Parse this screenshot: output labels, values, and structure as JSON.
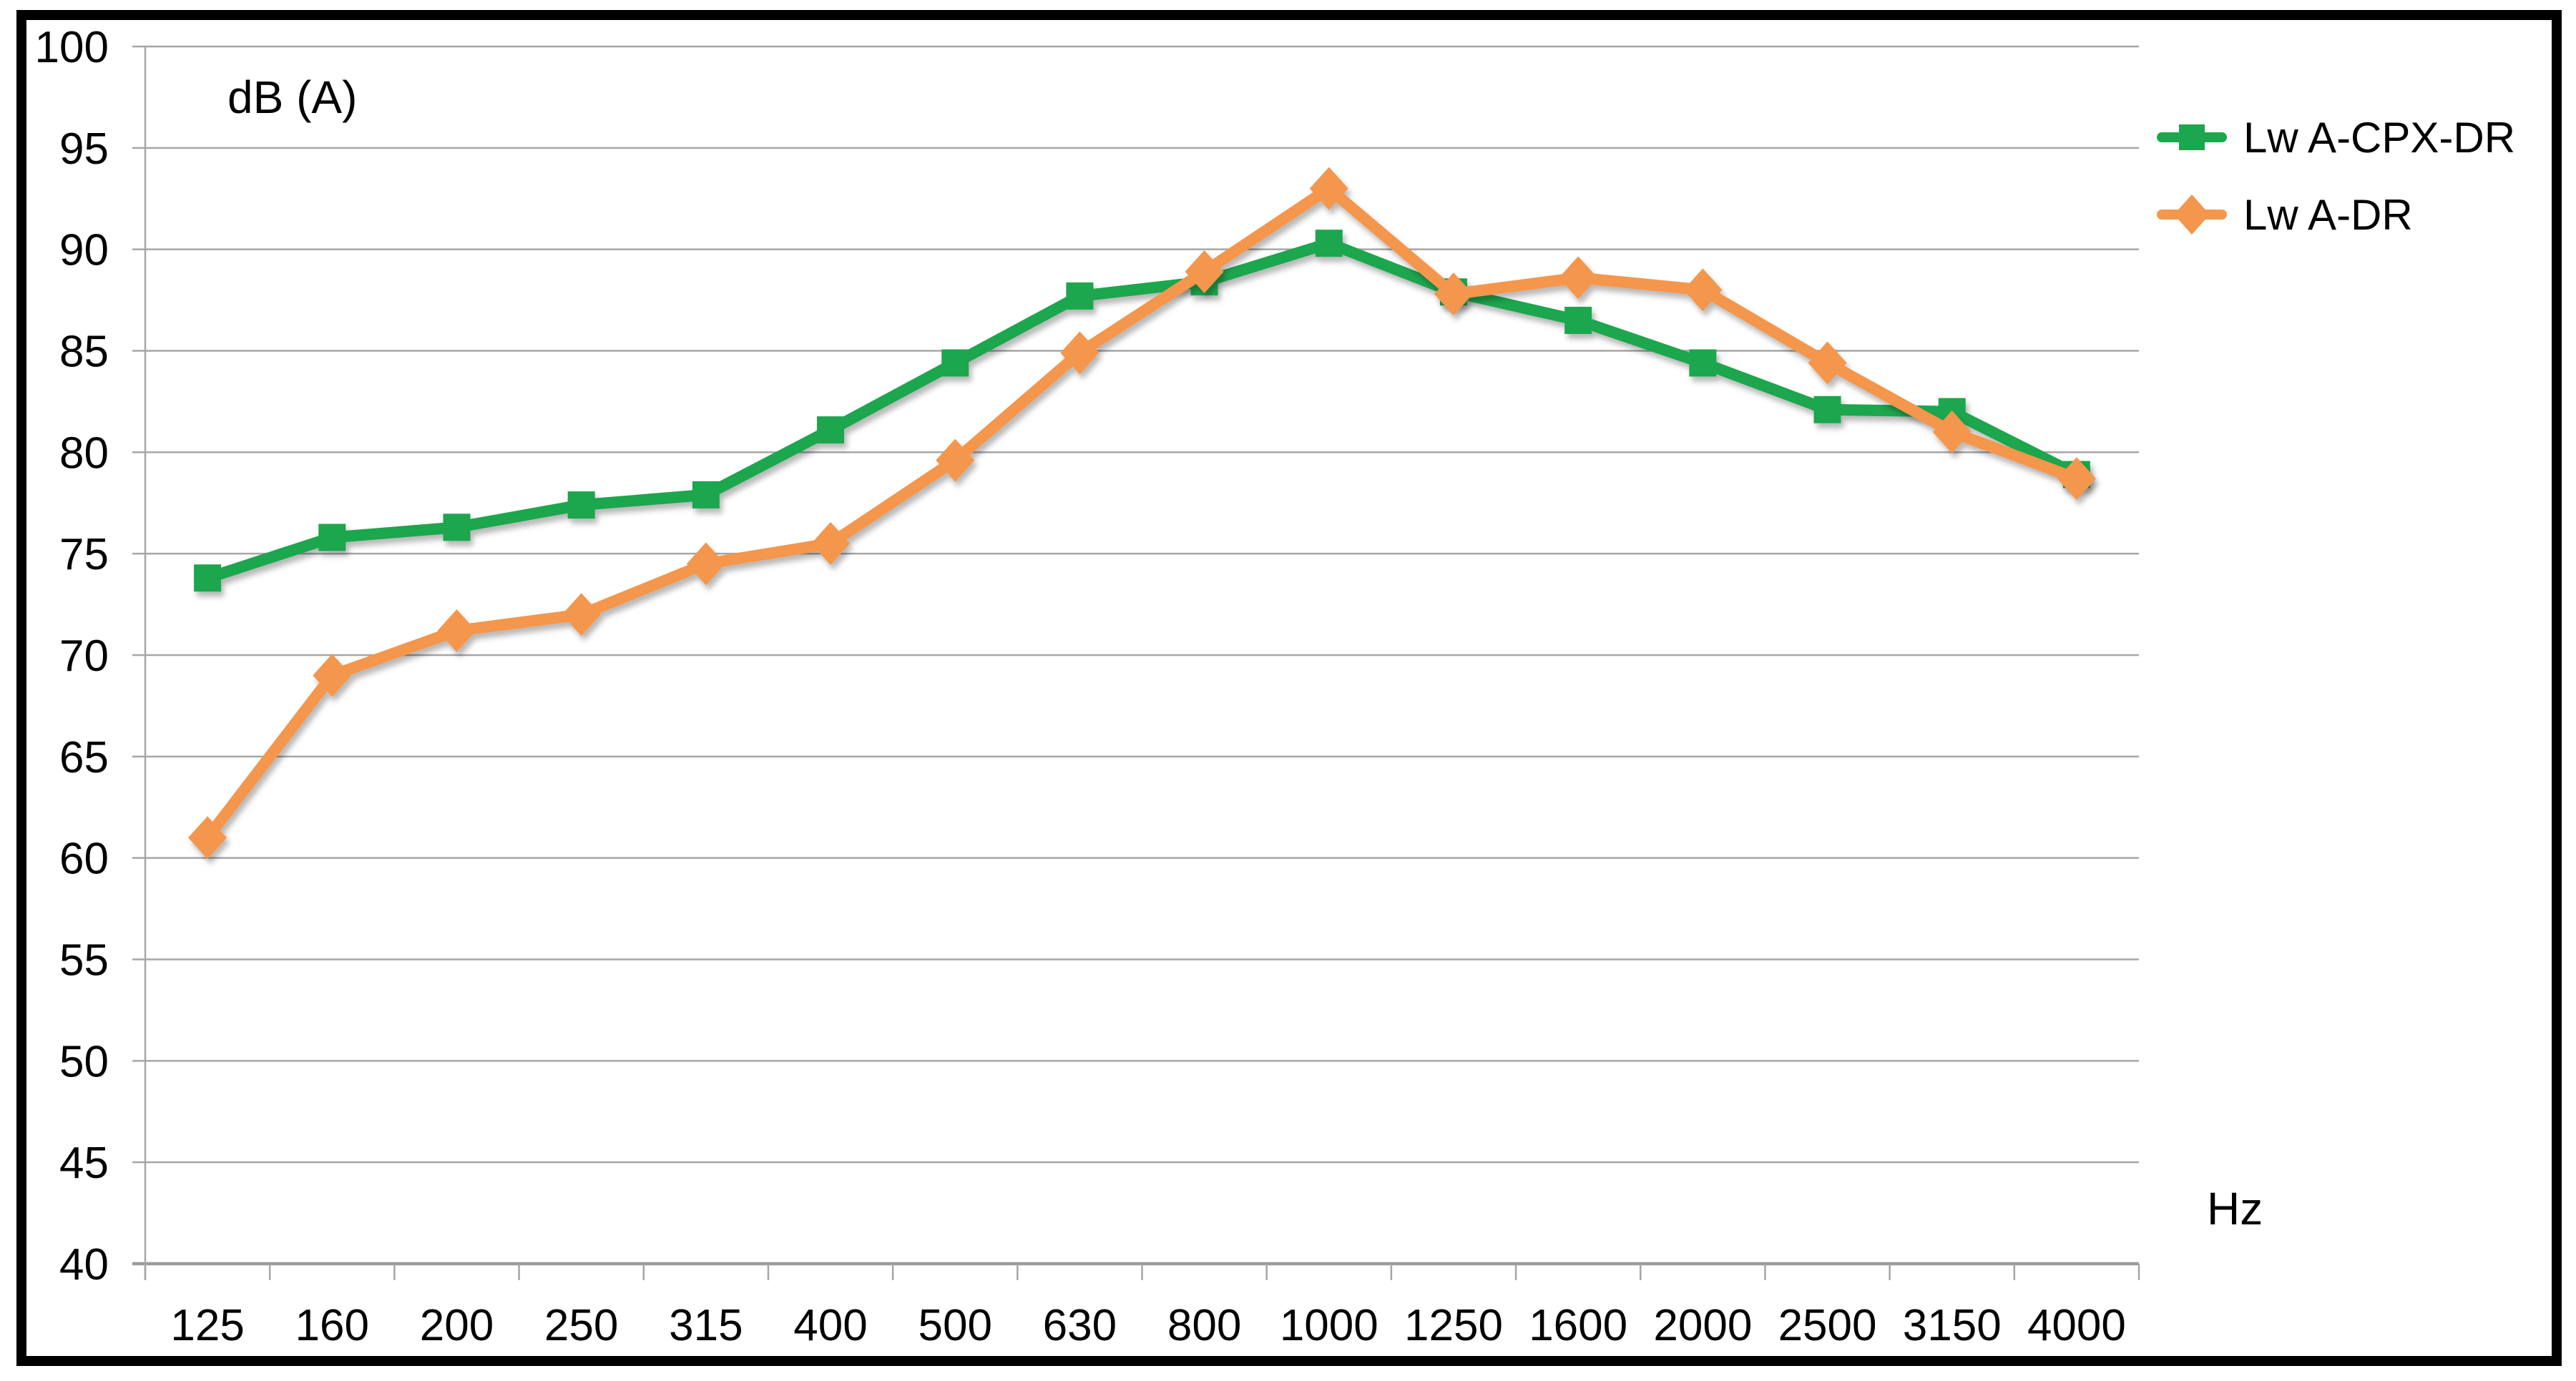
{
  "page": {
    "background": "#ffffff",
    "frame_color": "#000000"
  },
  "chart_data": {
    "type": "line",
    "title": "",
    "ylabel": "dB (A)",
    "xlabel": "Hz",
    "ylim": [
      40,
      100
    ],
    "ytick_step": 5,
    "ytick_labels": [
      "100",
      "95",
      "90",
      "85",
      "80",
      "75",
      "70",
      "65",
      "60",
      "55",
      "50",
      "45",
      "40"
    ],
    "grid": true,
    "gridline_color": "#A6A6A6",
    "axis_line_color": "#9B9B9B",
    "legend_position": "right",
    "categories": [
      "125",
      "160",
      "200",
      "250",
      "315",
      "400",
      "500",
      "630",
      "800",
      "1000",
      "1250",
      "1600",
      "2000",
      "2500",
      "3150",
      "4000"
    ],
    "series": [
      {
        "name": "Lw A-CPX-DR",
        "color": "#1CA64D",
        "marker": "square",
        "values": [
          73.8,
          75.8,
          76.3,
          77.4,
          77.9,
          81.1,
          84.4,
          87.7,
          88.4,
          90.3,
          87.9,
          86.5,
          84.4,
          82.1,
          82.0,
          78.9
        ]
      },
      {
        "name": "Lw A-DR",
        "color": "#F4964B",
        "marker": "diamond",
        "values": [
          61.0,
          69.0,
          71.2,
          72.0,
          74.5,
          75.5,
          79.6,
          84.9,
          88.9,
          93.0,
          87.8,
          88.6,
          88.0,
          84.4,
          81.0,
          78.7
        ]
      }
    ]
  }
}
